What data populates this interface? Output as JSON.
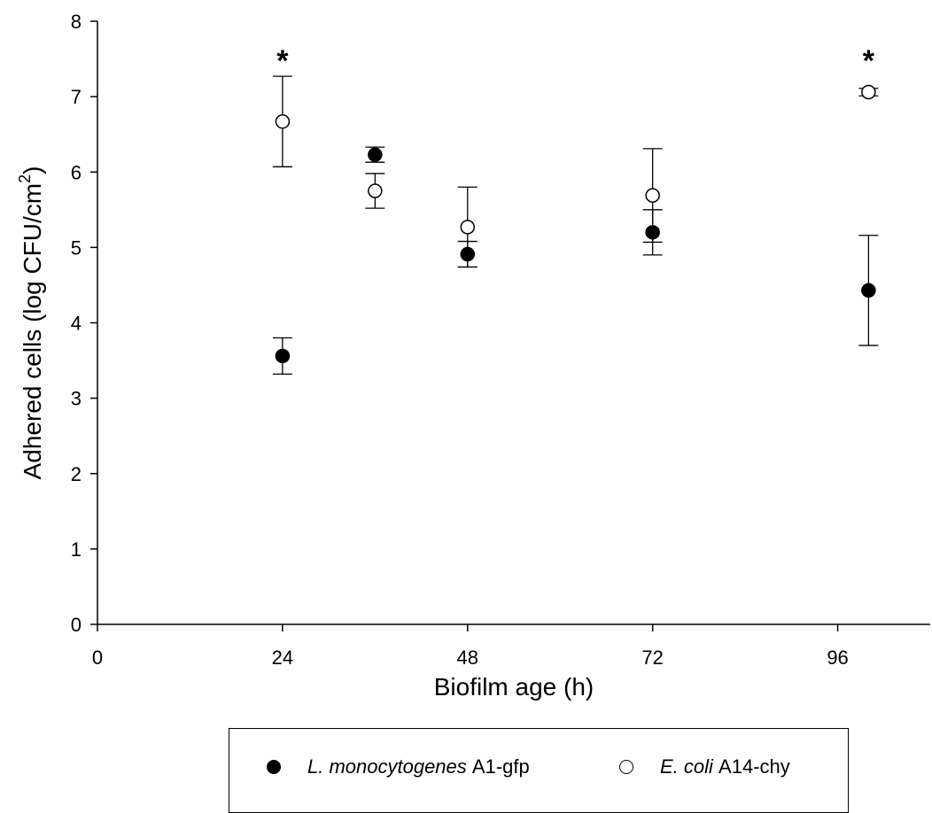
{
  "chart_data": {
    "type": "scatter",
    "xlabel": "Biofilm age (h)",
    "ylabel_prefix": "Adhered cells (log CFU/cm",
    "ylabel_sup": "2",
    "ylabel_suffix": ")",
    "xlim": [
      0,
      108
    ],
    "ylim": [
      0,
      8
    ],
    "xticks": [
      0,
      24,
      48,
      72,
      96
    ],
    "yticks": [
      0,
      1,
      2,
      3,
      4,
      5,
      6,
      7,
      8
    ],
    "series": [
      {
        "name": "L. monocytogenes A1-gfp",
        "legend_species": "L. monocytogenes",
        "legend_strain": "A1-gfp",
        "marker": "filled",
        "color": "#000000",
        "x": [
          24,
          36,
          48,
          72,
          100
        ],
        "y": [
          3.56,
          6.23,
          4.91,
          5.2,
          4.43
        ],
        "err": [
          0.24,
          0.1,
          0.17,
          0.3,
          0.73
        ]
      },
      {
        "name": "E. coli A14-chy",
        "legend_species": "E. coli",
        "legend_strain": "A14-chy",
        "marker": "open",
        "color": "#ffffff",
        "x": [
          24,
          36,
          48,
          72,
          100
        ],
        "y": [
          6.67,
          5.75,
          5.27,
          5.69,
          7.06
        ],
        "err": [
          0.6,
          0.23,
          0.53,
          0.62,
          0.05
        ]
      }
    ],
    "annotations": [
      {
        "text": "*",
        "x": 24,
        "y": 7.6
      },
      {
        "text": "*",
        "x": 100,
        "y": 7.6
      }
    ],
    "grid": false,
    "legend_position": "bottom"
  }
}
